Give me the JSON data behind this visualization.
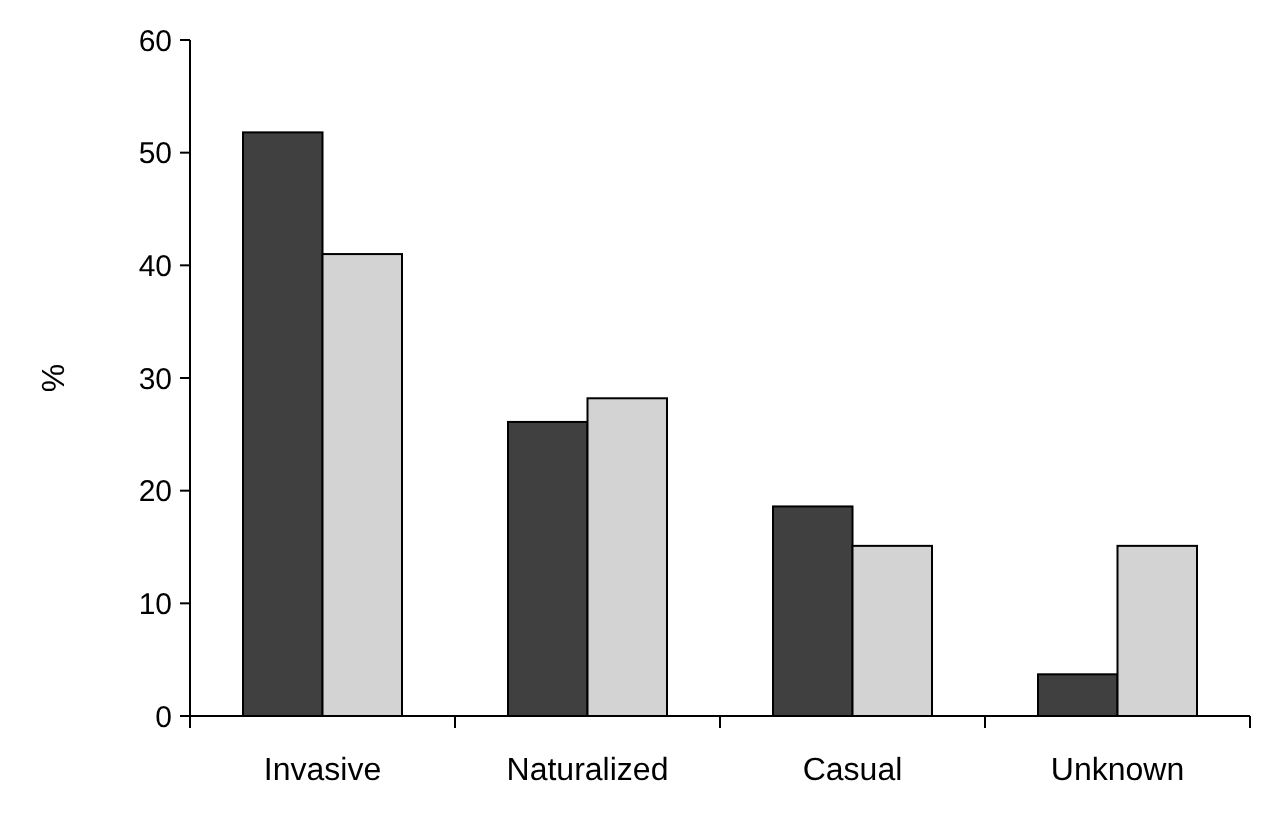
{
  "chart_data": {
    "type": "bar",
    "ylabel": "%",
    "categories": [
      "Invasive",
      "Naturalized",
      "Casual",
      "Unknown"
    ],
    "series": [
      {
        "color": "#404040",
        "values": [
          51.8,
          26.1,
          18.6,
          3.7
        ]
      },
      {
        "color": "#d3d3d3",
        "values": [
          41,
          28.2,
          15.1,
          15.1
        ]
      }
    ],
    "ylim": [
      0,
      60
    ],
    "yticks": [
      0,
      10,
      20,
      30,
      40,
      50,
      60
    ]
  }
}
